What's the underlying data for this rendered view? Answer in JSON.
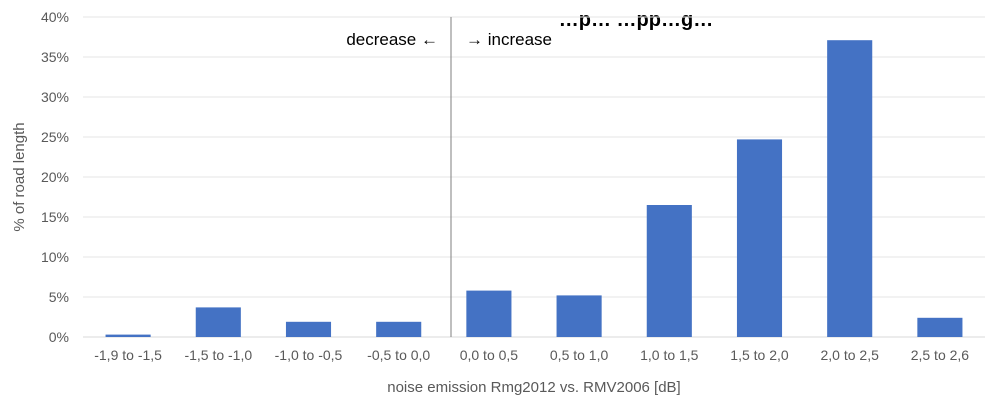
{
  "chart_data": {
    "type": "bar",
    "title": "…p… …pp…g…",
    "xlabel": "noise emission Rmg2012 vs. RMV2006 [dB]",
    "ylabel": "% of road length",
    "categories": [
      "-1,9 to -1,5",
      "-1,5 to -1,0",
      "-1,0 to -0,5",
      "-0,5 to 0,0",
      "0,0 to 0,5",
      "0,5 to 1,0",
      "1,0 to 1,5",
      "1,5 to 2,0",
      "2,0 to 2,5",
      "2,5 to 2,6"
    ],
    "values": [
      0.3,
      3.7,
      1.9,
      1.9,
      5.8,
      5.2,
      16.5,
      24.7,
      37.1,
      2.4
    ],
    "ylim": [
      0,
      40
    ],
    "yticks": [
      "0%",
      "5%",
      "10%",
      "15%",
      "20%",
      "25%",
      "30%",
      "35%",
      "40%"
    ],
    "bar_color": "#4472C4",
    "grid": true,
    "annotations": {
      "left": "decrease ←",
      "right": "→ increase"
    }
  }
}
